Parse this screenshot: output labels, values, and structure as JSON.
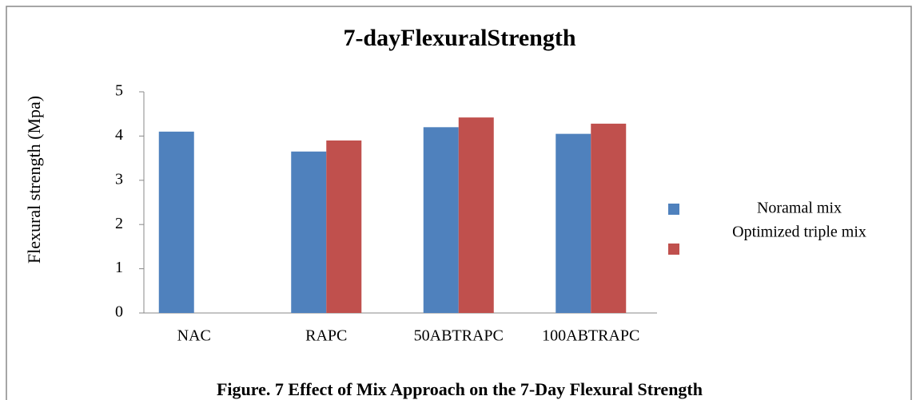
{
  "chart_data": {
    "type": "bar",
    "title": "7-dayFlexuralStrength",
    "y_label": "Flexural strength (Mpa)",
    "caption": "Figure. 7 Effect of Mix Approach on the 7-Day Flexural Strength",
    "categories": [
      "NAC",
      "RAPC",
      "50ABTRAPC",
      "100ABTRAPC"
    ],
    "series": [
      {
        "name": "Noramal mix",
        "color": "#4f81bd",
        "values": [
          4.1,
          3.65,
          4.2,
          4.05
        ]
      },
      {
        "name": "Optimized triple mix",
        "color": "#c0504d",
        "values": [
          null,
          3.9,
          4.42,
          4.28
        ]
      }
    ],
    "ylim": [
      0,
      5
    ],
    "yticks": [
      0,
      1,
      2,
      3,
      4,
      5
    ],
    "grid": false,
    "legend": "right"
  }
}
